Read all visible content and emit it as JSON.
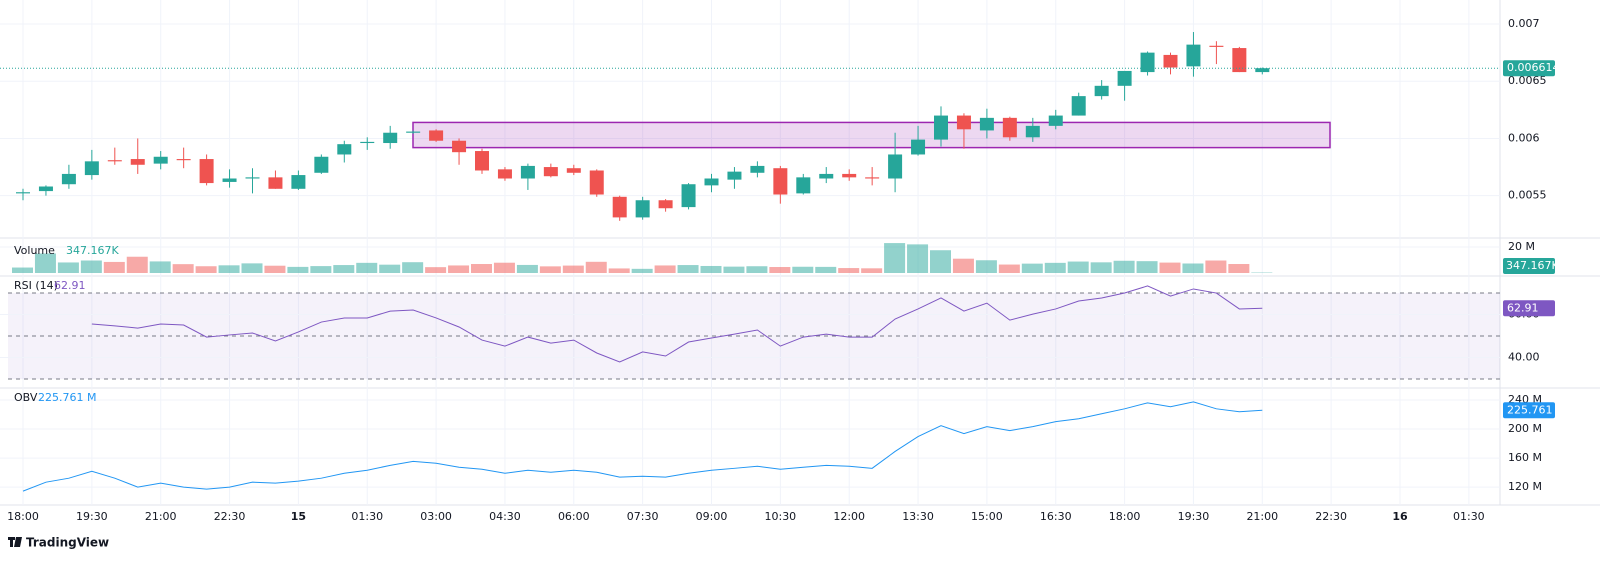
{
  "chart_data": {
    "type": "candlestick",
    "up_color": "#26a69a",
    "down_color": "#ef5350",
    "categories": [
      "18:00",
      null,
      null,
      "19:30",
      null,
      null,
      "21:00",
      null,
      null,
      "22:30",
      null,
      null,
      "15",
      null,
      null,
      "01:30",
      null,
      null,
      "03:00",
      null,
      null,
      "04:30",
      null,
      null,
      "06:00",
      null,
      null,
      "07:30",
      null,
      null,
      "09:00",
      null,
      null,
      "10:30",
      null,
      null,
      "12:00",
      null,
      null,
      "13:30",
      null,
      null,
      "15:00",
      null,
      null,
      "16:30",
      null,
      null,
      "18:00",
      null,
      null,
      "19:30",
      null,
      null,
      "21:00",
      null,
      null,
      "22:30",
      null,
      null,
      "16",
      null,
      null,
      "01:30"
    ],
    "open": [
      0.00552,
      0.00554,
      0.0056,
      0.00568,
      0.00581,
      0.00582,
      0.00578,
      0.00582,
      0.00582,
      0.00562,
      0.00565,
      0.00566,
      0.00556,
      0.0057,
      0.00586,
      0.00596,
      0.00596,
      0.00605,
      0.00607,
      0.00598,
      0.00589,
      0.00573,
      0.00565,
      0.00575,
      0.00574,
      0.00572,
      0.00549,
      0.00531,
      0.00546,
      0.0054,
      0.00559,
      0.00564,
      0.0057,
      0.00574,
      0.00552,
      0.00565,
      0.00569,
      0.00566,
      0.00565,
      0.00586,
      0.00599,
      0.0062,
      0.00607,
      0.00618,
      0.00601,
      0.00611,
      0.0062,
      0.00637,
      0.00646,
      0.00658,
      0.00673,
      0.00663,
      0.00681,
      0.00679,
      0.00658,
      null,
      null,
      null,
      null,
      null,
      null,
      null,
      null,
      null
    ],
    "high": [
      0.00556,
      0.00559,
      0.00577,
      0.0059,
      0.00592,
      0.006,
      0.00589,
      0.00592,
      0.00586,
      0.00573,
      0.00574,
      0.00572,
      0.00572,
      0.00586,
      0.00598,
      0.00601,
      0.00611,
      0.00607,
      0.00608,
      0.006,
      0.00591,
      0.00575,
      0.00578,
      0.00578,
      0.00577,
      0.00573,
      0.0055,
      0.00549,
      0.00547,
      0.00561,
      0.00569,
      0.00575,
      0.0058,
      0.00576,
      0.00569,
      0.00575,
      0.00573,
      0.00575,
      0.00605,
      0.00611,
      0.00628,
      0.00622,
      0.00626,
      0.00619,
      0.00618,
      0.00625,
      0.0064,
      0.00651,
      0.00659,
      0.00676,
      0.00675,
      0.00693,
      0.00685,
      0.0068,
      0.00662,
      null,
      null,
      null,
      null,
      null,
      null,
      null,
      null,
      null
    ],
    "low": [
      0.00546,
      0.0055,
      0.00556,
      0.00564,
      0.00577,
      0.00569,
      0.00573,
      0.00574,
      0.00559,
      0.00557,
      0.00552,
      0.00556,
      0.00555,
      0.00569,
      0.00579,
      0.0059,
      0.00591,
      0.00604,
      0.00597,
      0.00577,
      0.00569,
      0.00563,
      0.00555,
      0.00566,
      0.00568,
      0.00549,
      0.00528,
      0.00529,
      0.00536,
      0.00538,
      0.00553,
      0.00556,
      0.00566,
      0.00543,
      0.00551,
      0.00561,
      0.00563,
      0.00559,
      0.00553,
      0.00585,
      0.00593,
      0.00591,
      0.006,
      0.00598,
      0.00597,
      0.00608,
      0.0062,
      0.00634,
      0.00633,
      0.00655,
      0.00656,
      0.00654,
      0.00665,
      0.00658,
      0.00656,
      null,
      null,
      null,
      null,
      null,
      null,
      null,
      null,
      null
    ],
    "close": [
      0.00553,
      0.00558,
      0.00569,
      0.0058,
      0.0058,
      0.00577,
      0.00584,
      0.00581,
      0.00561,
      0.00565,
      0.00566,
      0.00556,
      0.00568,
      0.00584,
      0.00595,
      0.00597,
      0.00605,
      0.00606,
      0.00598,
      0.00588,
      0.00572,
      0.00565,
      0.00576,
      0.00567,
      0.0057,
      0.00551,
      0.00531,
      0.00546,
      0.00539,
      0.0056,
      0.00565,
      0.00571,
      0.00576,
      0.00551,
      0.00566,
      0.00569,
      0.00566,
      0.00565,
      0.00586,
      0.00599,
      0.0062,
      0.00608,
      0.00618,
      0.00601,
      0.00611,
      0.0062,
      0.00637,
      0.00646,
      0.00659,
      0.00675,
      0.00662,
      0.00682,
      0.0068,
      0.00658,
      0.006614,
      null,
      null,
      null,
      null,
      null,
      null,
      null,
      null,
      null
    ],
    "ylim": [
      0.00513,
      0.00721
    ],
    "yticks": [
      0.0055,
      0.006,
      0.0065,
      0.007
    ],
    "zone": {
      "low": 0.00592,
      "high": 0.00614,
      "color": "#9c27b0"
    },
    "volume": {
      "title": "Volume",
      "ylim": [
        0,
        26900000
      ],
      "yticks": [
        {
          "value": 20000000,
          "label": "20 M"
        }
      ],
      "values": [
        4200000,
        15000000,
        8100000,
        9600000,
        8500000,
        12500000,
        8900000,
        6800000,
        5200000,
        5900000,
        7400000,
        5600000,
        4700000,
        5300000,
        6100000,
        7800000,
        6400000,
        8300000,
        4500000,
        5800000,
        6900000,
        7900000,
        6200000,
        5100000,
        5700000,
        8600000,
        3500000,
        3200000,
        5800000,
        6100000,
        5400000,
        4900000,
        5200000,
        4600000,
        4800000,
        4700000,
        3800000,
        3600000,
        23000000,
        22000000,
        17500000,
        11000000,
        9800000,
        6500000,
        7200000,
        7800000,
        8800000,
        8200000,
        9400000,
        9100000,
        8000000,
        7300000,
        9600000,
        6900000,
        347167,
        null,
        null,
        null,
        null,
        null,
        null,
        null,
        null,
        null
      ],
      "value_labels": [
        null,
        null,
        null,
        null,
        null,
        null,
        null,
        null,
        null,
        null,
        null,
        null,
        null,
        null,
        null,
        null,
        null,
        null,
        null,
        null,
        null,
        null,
        null,
        null,
        null,
        null,
        null,
        null,
        null,
        null,
        null,
        null,
        null,
        null,
        null,
        null,
        null,
        null,
        null,
        null,
        null,
        null,
        null,
        null,
        null,
        null,
        null,
        null,
        null,
        null,
        null,
        null,
        null,
        null,
        "347.167K",
        null,
        null,
        null,
        null,
        null,
        null,
        null,
        null,
        null
      ]
    },
    "rsi": {
      "title": "RSI (14)",
      "color": "#7e57c2",
      "ylim": [
        27.2,
        77
      ],
      "levels": [
        30,
        50,
        70
      ],
      "yticks": [
        {
          "value": 40,
          "label": "40.00"
        },
        {
          "value": 60,
          "label": "60.00"
        }
      ],
      "values": [
        null,
        null,
        null,
        55.6,
        54.7,
        53.7,
        55.6,
        55.1,
        49.5,
        50.5,
        51.4,
        47.7,
        51.9,
        56.5,
        58.4,
        58.4,
        61.6,
        62.1,
        58.4,
        54.2,
        48.1,
        45.3,
        49.5,
        46.7,
        48.1,
        42.1,
        37.9,
        42.6,
        40.7,
        47.2,
        49.1,
        50.9,
        52.8,
        45.3,
        49.5,
        50.9,
        49.5,
        49.5,
        57.9,
        62.6,
        67.7,
        61.6,
        65.3,
        57.4,
        60.2,
        62.6,
        66.3,
        67.7,
        70,
        73.3,
        68.6,
        71.9,
        70,
        62.6,
        62.91,
        null,
        null,
        null,
        null,
        null,
        null,
        null,
        null,
        null
      ]
    },
    "obv": {
      "title": "OBV",
      "color": "#2196f3",
      "ylim": [
        95400000,
        253700000
      ],
      "yticks": [
        {
          "value": 120000000,
          "label": "120 M"
        },
        {
          "value": 160000000,
          "label": "160 M"
        },
        {
          "value": 200000000,
          "label": "200 M"
        },
        {
          "value": 240000000,
          "label": "240 M"
        }
      ],
      "values": [
        114500000,
        126800000,
        132300000,
        141800000,
        132300000,
        120000000,
        125500000,
        120000000,
        117300000,
        120000000,
        126800000,
        125500000,
        128200000,
        132300000,
        139100000,
        143200000,
        150000000,
        155500000,
        152800000,
        147300000,
        144600000,
        139100000,
        143200000,
        140500000,
        143200000,
        140500000,
        133700000,
        135000000,
        133700000,
        139100000,
        143200000,
        145900000,
        148700000,
        144600000,
        147300000,
        150000000,
        148700000,
        145900000,
        169100000,
        189600000,
        204600000,
        193700000,
        203300000,
        197800000,
        203300000,
        210100000,
        214200000,
        221000000,
        227800000,
        236000000,
        230600000,
        237400000,
        227800000,
        223800000,
        225761000,
        null,
        null,
        null,
        null,
        null,
        null,
        null,
        null,
        null
      ],
      "value_labels": [
        null,
        null,
        null,
        null,
        null,
        null,
        null,
        null,
        null,
        null,
        null,
        null,
        null,
        null,
        null,
        null,
        null,
        null,
        null,
        null,
        null,
        null,
        null,
        null,
        null,
        null,
        null,
        null,
        null,
        null,
        null,
        null,
        null,
        null,
        null,
        null,
        null,
        null,
        null,
        null,
        null,
        null,
        null,
        null,
        null,
        null,
        null,
        null,
        null,
        null,
        null,
        null,
        null,
        null,
        "225.761 M",
        null,
        null,
        null,
        null,
        null,
        null,
        null,
        null,
        null
      ]
    }
  },
  "brand": "TradingView"
}
